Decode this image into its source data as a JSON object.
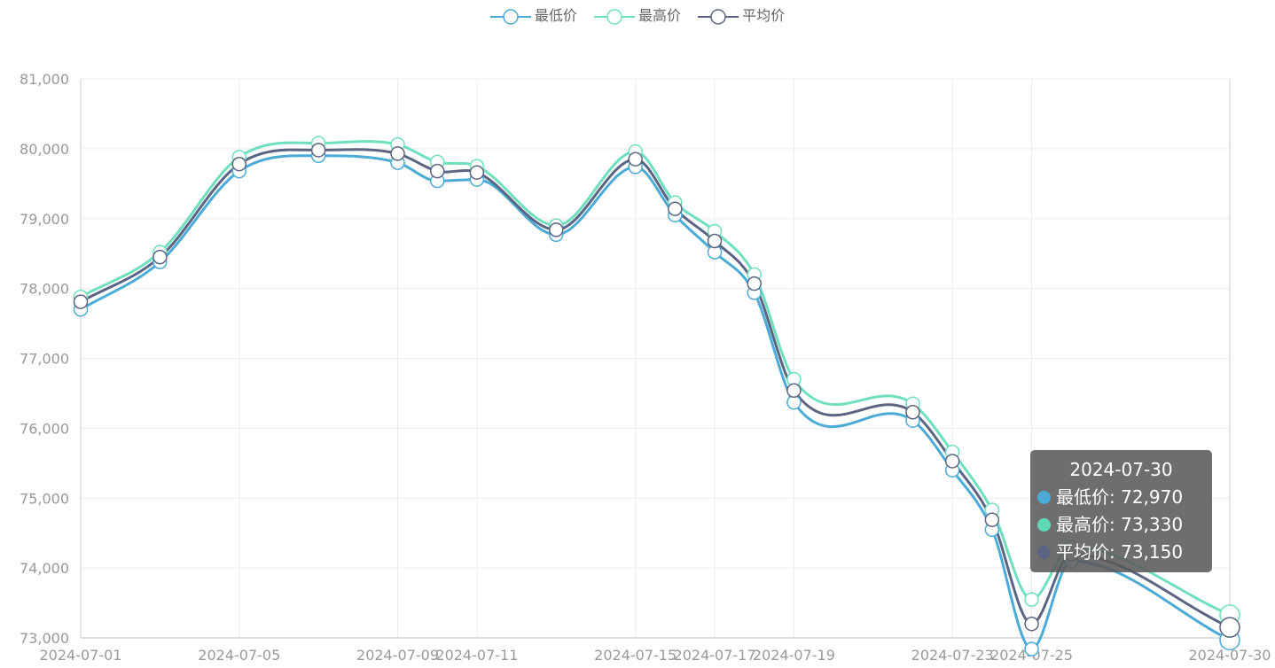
{
  "chart_data": {
    "type": "line",
    "smooth": true,
    "title": "",
    "xlabel": "",
    "ylabel": "",
    "ylim": [
      73000,
      81000
    ],
    "y_ticks": [
      73000,
      74000,
      75000,
      76000,
      77000,
      78000,
      79000,
      80000,
      81000
    ],
    "y_tick_labels": [
      "73,000",
      "74,000",
      "75,000",
      "76,000",
      "77,000",
      "78,000",
      "79,000",
      "80,000",
      "81,000"
    ],
    "x": [
      "2024-07-01",
      "2024-07-03",
      "2024-07-05",
      "2024-07-07",
      "2024-07-09",
      "2024-07-10",
      "2024-07-11",
      "2024-07-13",
      "2024-07-15",
      "2024-07-16",
      "2024-07-17",
      "2024-07-18",
      "2024-07-19",
      "2024-07-22",
      "2024-07-23",
      "2024-07-24",
      "2024-07-25",
      "2024-07-26",
      "2024-07-30"
    ],
    "x_tick_labels": [
      "2024-07-01",
      "2024-07-05",
      "2024-07-09",
      "2024-07-11",
      "2024-07-15",
      "2024-07-17",
      "2024-07-19",
      "2024-07-23",
      "2024-07-25",
      "2024-07-30"
    ],
    "x_tick_index": [
      0,
      2,
      4,
      6,
      8,
      10,
      12,
      14,
      16,
      18
    ],
    "grid": true,
    "legend_position": "top-center",
    "series": [
      {
        "name": "最低价",
        "color": "#4aabd6",
        "values": [
          77700,
          78380,
          79680,
          79900,
          79800,
          79540,
          79560,
          78770,
          79740,
          79050,
          78520,
          77940,
          76370,
          76110,
          75400,
          74550,
          72840,
          74100,
          72970
        ]
      },
      {
        "name": "最高价",
        "color": "#6fe0bf",
        "values": [
          77880,
          78520,
          79880,
          80080,
          80060,
          79810,
          79750,
          78900,
          79960,
          79230,
          78820,
          78200,
          76700,
          76350,
          75660,
          74830,
          73550,
          74300,
          73330
        ]
      },
      {
        "name": "平均价",
        "color": "#5b6482",
        "values": [
          77810,
          78450,
          79780,
          79980,
          79930,
          79680,
          79660,
          78840,
          79850,
          79140,
          78680,
          78070,
          76540,
          76230,
          75530,
          74690,
          73200,
          74200,
          73150
        ]
      }
    ]
  },
  "tooltip": {
    "title": "2024-07-30",
    "rows": [
      {
        "label": "最低价: 72,970",
        "color": "#4aabd6"
      },
      {
        "label": "最高价: 73,330",
        "color": "#5fd9b5"
      },
      {
        "label": "平均价: 73,150",
        "color": "#5b6482"
      }
    ]
  }
}
